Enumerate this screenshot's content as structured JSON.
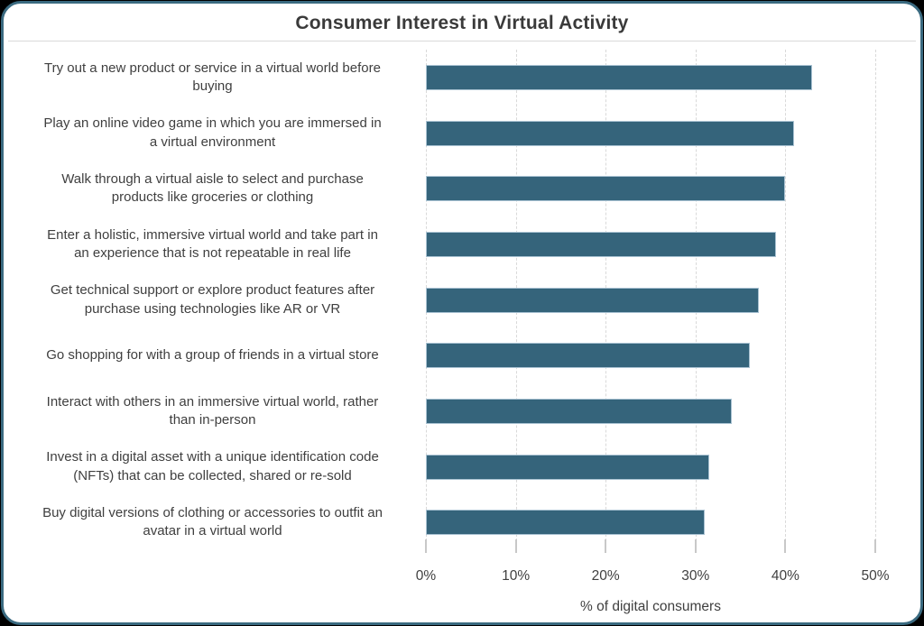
{
  "title": "Consumer Interest in Virtual Activity",
  "chart_data": {
    "type": "bar",
    "orientation": "horizontal",
    "title": "Consumer Interest in Virtual Activity",
    "categories": [
      "Try out a new product or service in a virtual world before\nbuying",
      "Play an online video game in which you are immersed in\na virtual environment",
      "Walk through a virtual aisle to select and purchase\nproducts like groceries or clothing",
      "Enter a holistic, immersive virtual world and take part in\nan experience that is not repeatable in real life",
      "Get technical support or explore product features after\npurchase using technologies like AR or VR",
      "Go shopping for with a group of friends in a virtual store",
      "Interact with others in an immersive virtual world, rather\nthan in-person",
      "Invest in a digital asset with a unique identification code\n(NFTs) that can be collected, shared or re-sold",
      "Buy digital versions of clothing or accessories to outfit an\navatar in a virtual world"
    ],
    "values": [
      43,
      41,
      40,
      39,
      37,
      36,
      34,
      31.5,
      31
    ],
    "xlabel": "% of digital consumers",
    "xlim": [
      0,
      50
    ],
    "x_ticks": [
      "0%",
      "10%",
      "20%",
      "30%",
      "40%",
      "50%"
    ],
    "grid": true,
    "legend": false,
    "colors": {
      "bar_fill": "#35647B",
      "bar_border": "#A9C2D2",
      "frame_border": "#3A6A80",
      "gridline": "#D9D9D9",
      "tick_mark": "#C8C8C8",
      "text": "#3F3F3F",
      "background": "#FFFFFF",
      "outside_background": "#000000"
    }
  }
}
